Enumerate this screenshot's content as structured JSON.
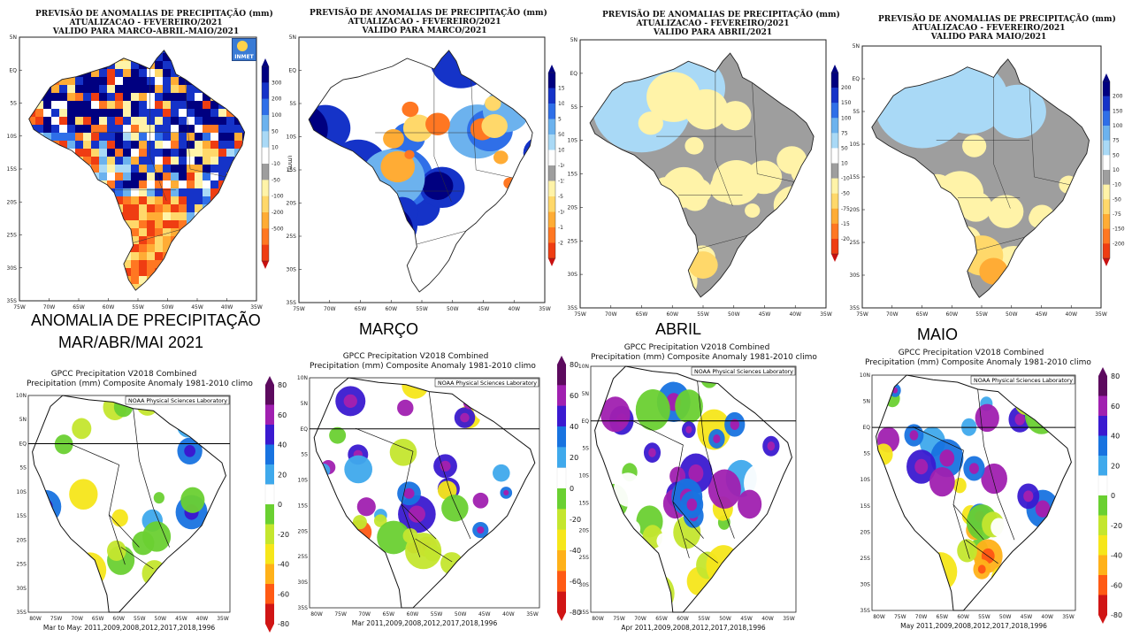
{
  "inmet": {
    "panels": [
      {
        "title": [
          "PREVISÃO DE ANOMALIAS DE PRECIPITAÇÃO (mm)",
          "ATUALIZACAO - FEVEREIRO/2021",
          "VALIDO PARA MARCO-ABRIL-MAIO/2021"
        ],
        "unit": "(mm)",
        "logo": "INMET",
        "cbar": [
          "300",
          "200",
          "100",
          "50",
          "10",
          "-10",
          "-50",
          "-100",
          "-200",
          "-500"
        ]
      },
      {
        "title": [
          "PREVISÃO DE ANOMALIAS DE PRECIPITAÇÃO (mm)",
          "ATUALIZACAO - FEVEREIRO/2021",
          "VALIDO PARA MARCO/2021"
        ],
        "cbar": [
          "15",
          "10",
          "5",
          "50",
          "10",
          "-10",
          "-15",
          "-5",
          "-100",
          "-1",
          "-2"
        ]
      },
      {
        "title": [
          "PREVISÃO DE ANOMALIAS DE PRECIPITAÇÃO (mm)",
          "ATUALIZACAO - FEVEREIRO/2021",
          "VALIDO PARA ABRIL/2021"
        ],
        "cbar": [
          "200",
          "150",
          "100",
          "75",
          "50",
          "10",
          "-10",
          "-50",
          "-75",
          "-15",
          "-20"
        ]
      },
      {
        "title": [
          "PREVISÃO DE ANOMALIAS DE PRECIPITAÇÃO (mm)",
          "ATUALIZACAO - FEVEREIRO/2021",
          "VALIDO PARA MAIO/2021"
        ],
        "cbar": [
          "200",
          "150",
          "100",
          "75",
          "50",
          "10",
          "-10",
          "-50",
          "-75",
          "-150",
          "-200"
        ]
      }
    ],
    "lat_ticks": [
      "5N",
      "EQ",
      "5S",
      "10S",
      "15S",
      "20S",
      "25S",
      "30S",
      "35S"
    ],
    "lon_ticks": [
      "75W",
      "70W",
      "65W",
      "60W",
      "55W",
      "50W",
      "45W",
      "40W",
      "35W"
    ]
  },
  "captions": {
    "full_line1": "ANOMALIA DE PRECIPITAÇÃO",
    "full_line2": "MAR/ABR/MAI  2021",
    "march": "MARÇO",
    "april": "ABRIL",
    "may": "MAIO"
  },
  "gpcc": {
    "title_line1": "GPCC Precipitation V2018 Combined",
    "title_line2": "Precipitation (mm) Composite Anomaly 1981-2010 climo",
    "lab": "NOAA Physical Sciences Laboratory",
    "lat_ticks": [
      "10N",
      "5N",
      "EQ",
      "5S",
      "10S",
      "15S",
      "20S",
      "25S",
      "30S",
      "35S"
    ],
    "lon_ticks": [
      "80W",
      "75W",
      "70W",
      "65W",
      "60W",
      "55W",
      "50W",
      "45W",
      "40W",
      "35W"
    ],
    "cbar": [
      "80",
      "60",
      "40",
      "20",
      "0",
      "-20",
      "-40",
      "-60",
      "-80"
    ],
    "footers": [
      "Mar to May: 2011,2009,2008,2012,2017,2018,1996",
      "Mar 2011,2009,2008,2012,2017,2018,1996",
      "Apr 2011,2009,2008,2012,2017,2018,1996",
      "May 2011,2009,2008,2012,2017,2018,1996"
    ]
  },
  "colors": {
    "inmet_wet": [
      "#000080",
      "#1533c8",
      "#2f6fe8",
      "#6cb2ee",
      "#a9d9f6",
      "#c9eefa"
    ],
    "inmet_neutral": "#9e9e9e",
    "inmet_dry": [
      "#fff3a8",
      "#ffd86a",
      "#ffac35",
      "#ff7722",
      "#ef3d12",
      "#c81010"
    ],
    "gpcc_scale": [
      "#5c0a5e",
      "#a020b0",
      "#3a1ad0",
      "#1873e0",
      "#3fa9ec",
      "#ffffff",
      "#6ad031",
      "#c4e62e",
      "#f6e61a",
      "#ffb119",
      "#ff5a14",
      "#d01515"
    ]
  }
}
